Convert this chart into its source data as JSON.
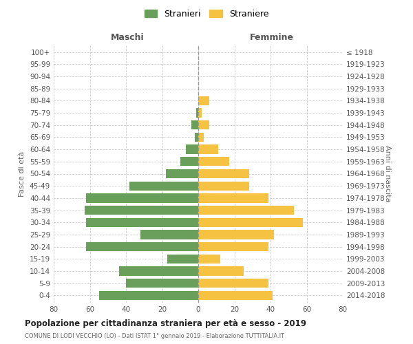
{
  "age_groups": [
    "0-4",
    "5-9",
    "10-14",
    "15-19",
    "20-24",
    "25-29",
    "30-34",
    "35-39",
    "40-44",
    "45-49",
    "50-54",
    "55-59",
    "60-64",
    "65-69",
    "70-74",
    "75-79",
    "80-84",
    "85-89",
    "90-94",
    "95-99",
    "100+"
  ],
  "birth_years": [
    "2014-2018",
    "2009-2013",
    "2004-2008",
    "1999-2003",
    "1994-1998",
    "1989-1993",
    "1984-1988",
    "1979-1983",
    "1974-1978",
    "1969-1973",
    "1964-1968",
    "1959-1963",
    "1954-1958",
    "1949-1953",
    "1944-1948",
    "1939-1943",
    "1934-1938",
    "1929-1933",
    "1924-1928",
    "1919-1923",
    "≤ 1918"
  ],
  "males": [
    55,
    40,
    44,
    17,
    62,
    32,
    62,
    63,
    62,
    38,
    18,
    10,
    7,
    2,
    4,
    1,
    0,
    0,
    0,
    0,
    0
  ],
  "females": [
    41,
    39,
    25,
    12,
    39,
    42,
    58,
    53,
    39,
    28,
    28,
    17,
    11,
    3,
    6,
    2,
    6,
    0,
    0,
    0,
    0
  ],
  "male_color": "#6a9e5b",
  "female_color": "#f5c242",
  "background_color": "#ffffff",
  "grid_color": "#cccccc",
  "title": "Popolazione per cittadinanza straniera per età e sesso - 2019",
  "subtitle": "COMUNE DI LODI VECCHIO (LO) - Dati ISTAT 1° gennaio 2019 - Elaborazione TUTTITALIA.IT",
  "xlabel_left": "Maschi",
  "xlabel_right": "Femmine",
  "ylabel_left": "Fasce di età",
  "ylabel_right": "Anni di nascita",
  "legend_male": "Stranieri",
  "legend_female": "Straniere",
  "xlim": 80,
  "bar_height": 0.75
}
